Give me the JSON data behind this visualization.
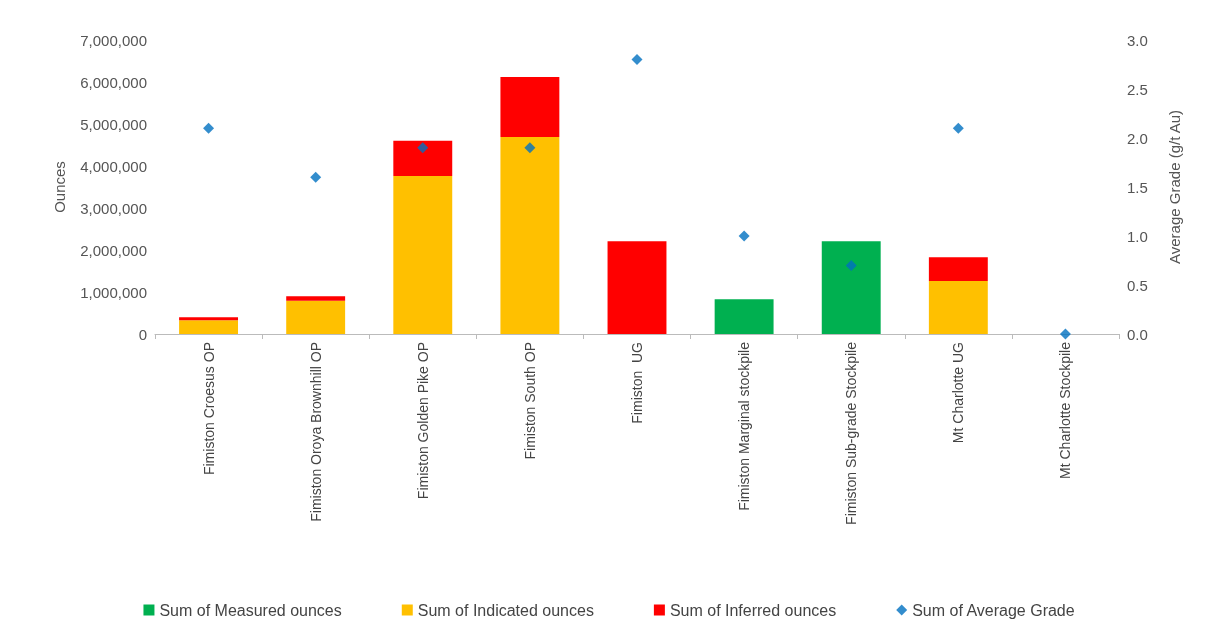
{
  "chart_data": {
    "type": "bar",
    "stacked": true,
    "ylabel": "Ounces",
    "y2label": "Average Grade (g/t Au)",
    "categories": [
      "Fimiston Croesus OP",
      "Fimiston Oroya Brownhill OP",
      "Fimiston Golden Pike OP",
      "Fimiston South OP",
      "Fimiston  UG",
      "Fimiston Marginal stockpile",
      "Fimiston Sub-grade Stockpile",
      "Mt Charlotte UG",
      "Mt Charlotte Stockpile"
    ],
    "series": [
      {
        "name": "Sum of Measured ounces",
        "color": "#00b050",
        "values": [
          null,
          null,
          null,
          null,
          null,
          830000,
          2210000,
          null,
          null
        ]
      },
      {
        "name": "Sum of Indicated ounces",
        "color": "#ffc000",
        "values": [
          330000,
          790000,
          3760000,
          4690000,
          null,
          null,
          null,
          1260000,
          null
        ]
      },
      {
        "name": "Sum of Inferred ounces",
        "color": "#ff0000",
        "values": [
          70000,
          110000,
          840000,
          1430000,
          2210000,
          null,
          null,
          570000,
          null
        ]
      },
      {
        "name": "Sum of Average Grade",
        "color": "#0070c0",
        "type": "scatter",
        "axis": "y2",
        "marker": "diamond",
        "values": [
          2.1,
          1.6,
          1.9,
          1.9,
          2.8,
          1.0,
          0.7,
          2.1,
          0.0
        ]
      }
    ],
    "ylim": [
      0,
      7000000
    ],
    "yticks": [
      {
        "value": 0,
        "label": "0"
      },
      {
        "value": 1000000,
        "label": "1,000,000"
      },
      {
        "value": 2000000,
        "label": "2,000,000"
      },
      {
        "value": 3000000,
        "label": "3,000,000"
      },
      {
        "value": 4000000,
        "label": "4,000,000"
      },
      {
        "value": 5000000,
        "label": "5,000,000"
      },
      {
        "value": 6000000,
        "label": "6,000,000"
      },
      {
        "value": 7000000,
        "label": "7,000,000"
      }
    ],
    "y2lim": [
      0,
      3
    ],
    "y2ticks": [
      {
        "value": 0,
        "label": "0.0"
      },
      {
        "value": 0.5,
        "label": "0.5"
      },
      {
        "value": 1,
        "label": "1.0"
      },
      {
        "value": 1.5,
        "label": "1.5"
      },
      {
        "value": 2,
        "label": "2.0"
      },
      {
        "value": 2.5,
        "label": "2.5"
      },
      {
        "value": 3,
        "label": "3.0"
      }
    ],
    "grid": false,
    "legend": "bottom"
  }
}
